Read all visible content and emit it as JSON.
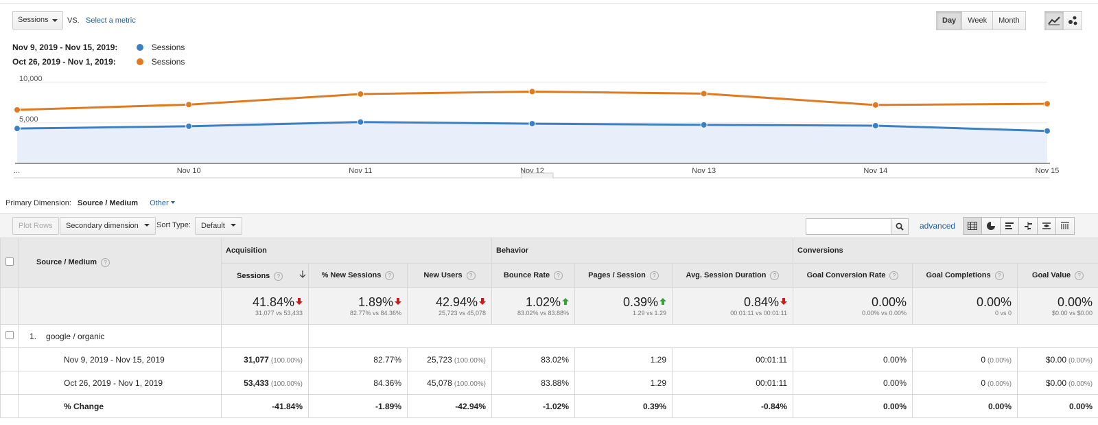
{
  "header": {
    "metric_select": "Sessions",
    "vs_label": "VS.",
    "select_metric": "Select a metric",
    "period_buttons": [
      "Day",
      "Week",
      "Month"
    ],
    "active_period": "Day"
  },
  "legend": [
    {
      "range": "Nov 9, 2019 - Nov 15, 2019:",
      "series": "Sessions",
      "color": "#3c7fc2"
    },
    {
      "range": "Oct 26, 2019 - Nov 1, 2019:",
      "series": "Sessions",
      "color": "#de7a22"
    }
  ],
  "chart_data": {
    "type": "line",
    "x": [
      "...",
      "Nov 10",
      "Nov 11",
      "Nov 12",
      "Nov 13",
      "Nov 14",
      "Nov 15"
    ],
    "y_ticks": [
      "10,000",
      "5,000"
    ],
    "ylim": [
      0,
      11000
    ],
    "series": [
      {
        "name": "Sessions",
        "color": "#3c7fc2",
        "fill": true,
        "values": [
          4300,
          4580,
          5100,
          4900,
          4750,
          4650,
          4000
        ]
      },
      {
        "name": "Sessions",
        "color": "#de7a22",
        "fill": false,
        "values": [
          6600,
          7250,
          8550,
          8850,
          8600,
          7200,
          7350
        ]
      }
    ],
    "grid": true
  },
  "primary_dimension": {
    "label": "Primary Dimension:",
    "value": "Source / Medium",
    "other": "Other"
  },
  "toolbar": {
    "plot_rows": "Plot Rows",
    "secondary": "Secondary dimension",
    "sort_type_label": "Sort Type:",
    "sort_default": "Default",
    "advanced": "advanced"
  },
  "table": {
    "dimension_header": "Source / Medium",
    "groups": [
      "Acquisition",
      "Behavior",
      "Conversions"
    ],
    "columns": [
      "Sessions",
      "% New Sessions",
      "New Users",
      "Bounce Rate",
      "Pages / Session",
      "Avg. Session Duration",
      "Goal Conversion Rate",
      "Goal Completions",
      "Goal Value"
    ],
    "totals": [
      {
        "big": "41.84%",
        "small": "31,077 vs 53,433",
        "arrow": "down"
      },
      {
        "big": "1.89%",
        "small": "82.77% vs 84.36%",
        "arrow": "down"
      },
      {
        "big": "42.94%",
        "small": "25,723 vs 45,078",
        "arrow": "down"
      },
      {
        "big": "1.02%",
        "small": "83.02% vs 83.88%",
        "arrow": "up"
      },
      {
        "big": "0.39%",
        "small": "1.29 vs 1.29",
        "arrow": "up"
      },
      {
        "big": "0.84%",
        "small": "00:01:11 vs 00:01:11",
        "arrow": "down"
      },
      {
        "big": "0.00%",
        "small": "0.00% vs 0.00%",
        "arrow": ""
      },
      {
        "big": "0.00%",
        "small": "0 vs 0",
        "arrow": ""
      },
      {
        "big": "0.00%",
        "small": "$0.00 vs $0.00",
        "arrow": ""
      }
    ],
    "group_row": {
      "index": "1.",
      "label": "google / organic"
    },
    "rows": [
      {
        "label": "Nov 9, 2019 - Nov 15, 2019",
        "cells": [
          [
            "31,077",
            "(100.00%)"
          ],
          [
            "82.77%",
            ""
          ],
          [
            "25,723",
            "(100.00%)"
          ],
          [
            "83.02%",
            ""
          ],
          [
            "1.29",
            ""
          ],
          [
            "00:01:11",
            ""
          ],
          [
            "0.00%",
            ""
          ],
          [
            "0",
            "(0.00%)"
          ],
          [
            "$0.00",
            "(0.00%)"
          ]
        ]
      },
      {
        "label": "Oct 26, 2019 - Nov 1, 2019",
        "cells": [
          [
            "53,433",
            "(100.00%)"
          ],
          [
            "84.36%",
            ""
          ],
          [
            "45,078",
            "(100.00%)"
          ],
          [
            "83.88%",
            ""
          ],
          [
            "1.29",
            ""
          ],
          [
            "00:01:11",
            ""
          ],
          [
            "0.00%",
            ""
          ],
          [
            "0",
            "(0.00%)"
          ],
          [
            "$0.00",
            "(0.00%)"
          ]
        ]
      },
      {
        "label": "% Change",
        "bold": true,
        "cells": [
          [
            "-41.84%",
            ""
          ],
          [
            "-1.89%",
            ""
          ],
          [
            "-42.94%",
            ""
          ],
          [
            "-1.02%",
            ""
          ],
          [
            "0.39%",
            ""
          ],
          [
            "-0.84%",
            ""
          ],
          [
            "0.00%",
            ""
          ],
          [
            "0.00%",
            ""
          ],
          [
            "0.00%",
            ""
          ]
        ]
      }
    ]
  }
}
